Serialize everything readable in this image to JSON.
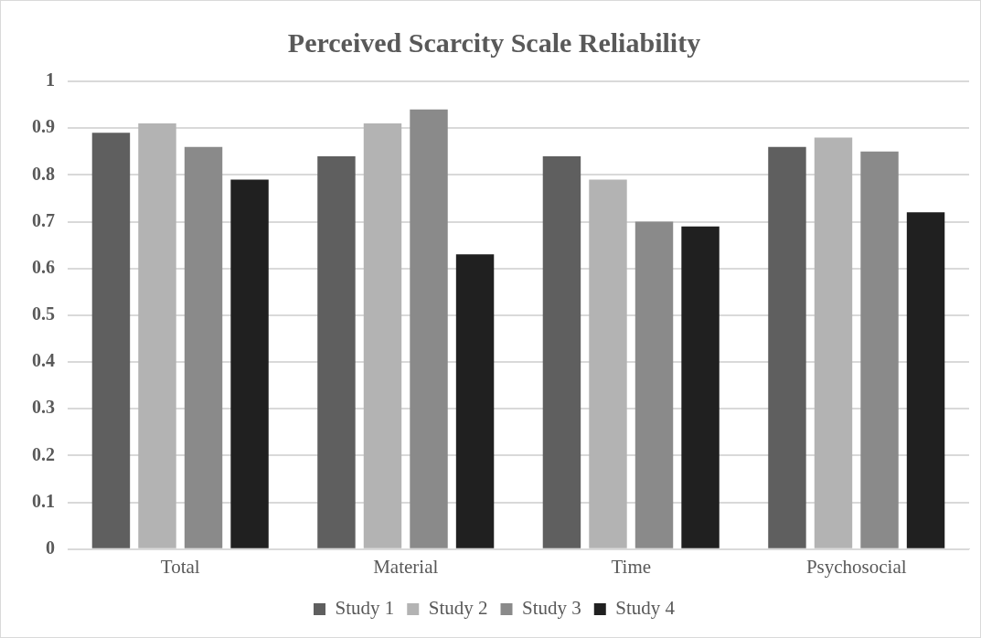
{
  "chart_data": {
    "type": "bar",
    "title": "Perceived Scarcity Scale Reliability",
    "categories": [
      "Total",
      "Material",
      "Time",
      "Psychosocial"
    ],
    "series": [
      {
        "name": "Study 1",
        "color": "#5f5f5f",
        "values": [
          0.89,
          0.84,
          0.84,
          0.86
        ]
      },
      {
        "name": "Study 2",
        "color": "#b3b3b3",
        "values": [
          0.91,
          0.91,
          0.79,
          0.88
        ]
      },
      {
        "name": "Study 3",
        "color": "#8a8a8a",
        "values": [
          0.86,
          0.94,
          0.7,
          0.85
        ]
      },
      {
        "name": "Study 4",
        "color": "#202020",
        "values": [
          0.79,
          0.63,
          0.69,
          0.72
        ]
      }
    ],
    "ylim": [
      0,
      1
    ],
    "yticks": [
      0,
      0.1,
      0.2,
      0.3,
      0.4,
      0.5,
      0.6,
      0.7,
      0.8,
      0.9,
      1
    ],
    "grid": "y",
    "legend": "bottom"
  }
}
